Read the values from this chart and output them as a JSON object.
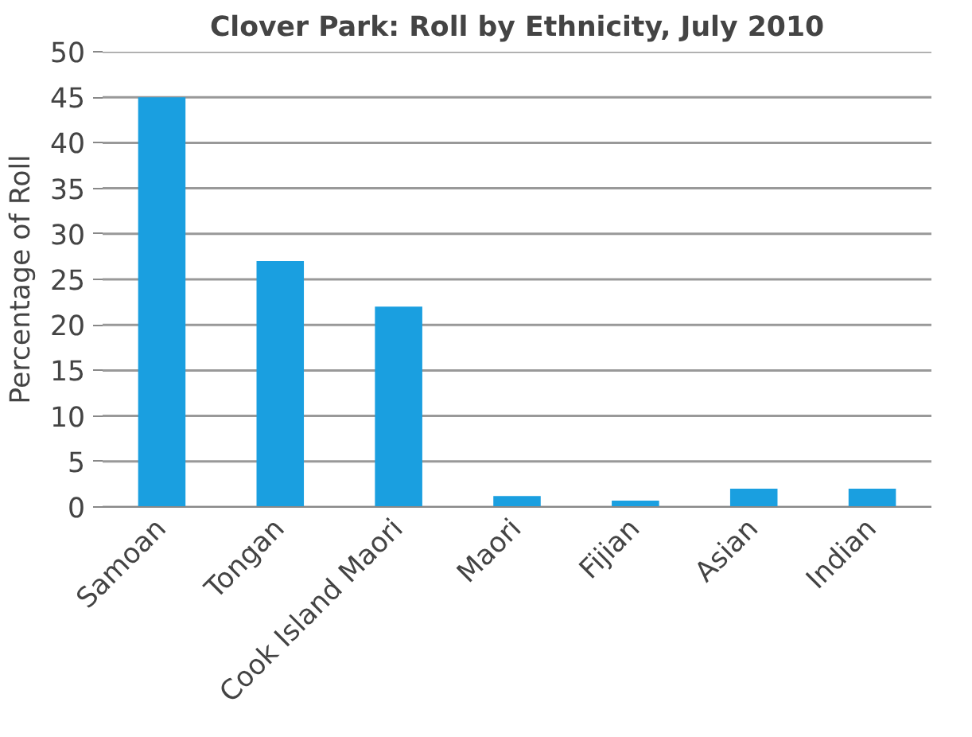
{
  "chart_data": {
    "type": "bar",
    "title": "Clover Park: Roll by Ethnicity, July 2010",
    "ylabel": "Percentage of Roll",
    "categories": [
      "Samoan",
      "Tongan",
      "Cook Island Maori",
      "Maori",
      "Fijian",
      "Asian",
      "Indian"
    ],
    "values": [
      45,
      27,
      22,
      1.2,
      0.7,
      2,
      2
    ],
    "color": "#1a9fe0",
    "ylim": [
      0,
      50
    ],
    "yticks": [
      0,
      5,
      10,
      15,
      20,
      25,
      30,
      35,
      40,
      45,
      50
    ],
    "grid": "y"
  }
}
